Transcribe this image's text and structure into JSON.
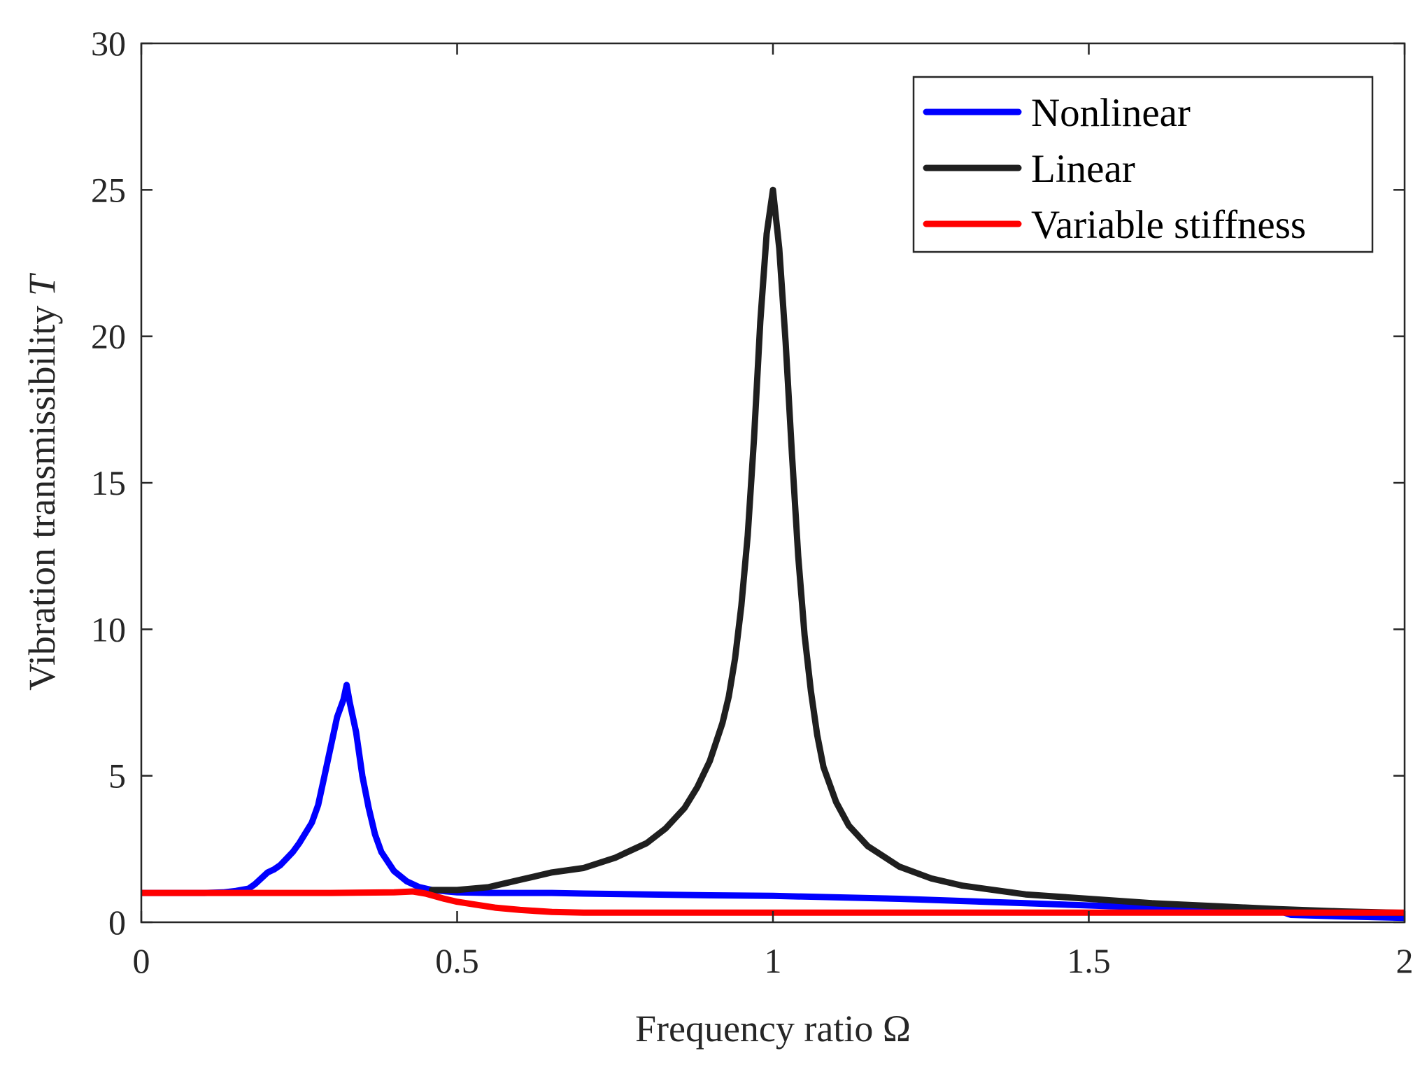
{
  "chart_data": {
    "type": "line",
    "title": "",
    "xlabel": "Frequency ratio Ω",
    "ylabel_text": "Vibration transmissibility ",
    "ylabel_var": "T",
    "xlim": [
      0,
      2
    ],
    "ylim": [
      0,
      30
    ],
    "xticks": [
      0,
      0.5,
      1,
      1.5,
      2
    ],
    "xtick_labels": [
      "0",
      "0.5",
      "1",
      "1.5",
      "2"
    ],
    "yticks": [
      0,
      5,
      10,
      15,
      20,
      25,
      30
    ],
    "ytick_labels": [
      "0",
      "5",
      "10",
      "15",
      "20",
      "25",
      "30"
    ],
    "grid": false,
    "legend_position": "top-right",
    "series": [
      {
        "name": "Nonlinear",
        "color": "#0000ff",
        "x": [
          0,
          0.05,
          0.1,
          0.13,
          0.15,
          0.17,
          0.18,
          0.2,
          0.21,
          0.22,
          0.24,
          0.25,
          0.27,
          0.28,
          0.29,
          0.3,
          0.31,
          0.32,
          0.325,
          0.33,
          0.34,
          0.35,
          0.36,
          0.37,
          0.38,
          0.4,
          0.42,
          0.44,
          0.46,
          0.5,
          0.55,
          0.6,
          0.65,
          0.7,
          0.8,
          0.9,
          1.0,
          1.2,
          1.4,
          1.6,
          1.8,
          1.82,
          1.9,
          2.0
        ],
        "y": [
          1.0,
          1.0,
          1.0,
          1.02,
          1.07,
          1.15,
          1.3,
          1.7,
          1.8,
          1.95,
          2.4,
          2.7,
          3.4,
          4.0,
          5.0,
          6.0,
          7.0,
          7.6,
          8.1,
          7.5,
          6.5,
          5.0,
          3.9,
          3.0,
          2.4,
          1.75,
          1.4,
          1.2,
          1.1,
          1.02,
          1.0,
          1.0,
          1.0,
          0.98,
          0.95,
          0.92,
          0.9,
          0.8,
          0.65,
          0.5,
          0.4,
          0.25,
          0.2,
          0.15
        ]
      },
      {
        "name": "Linear",
        "color": "#1f1f1f",
        "x": [
          0.46,
          0.5,
          0.55,
          0.6,
          0.63,
          0.65,
          0.7,
          0.75,
          0.77,
          0.8,
          0.83,
          0.86,
          0.88,
          0.9,
          0.92,
          0.93,
          0.94,
          0.95,
          0.96,
          0.97,
          0.98,
          0.99,
          1.0,
          1.01,
          1.02,
          1.03,
          1.04,
          1.05,
          1.06,
          1.07,
          1.08,
          1.1,
          1.12,
          1.15,
          1.2,
          1.25,
          1.3,
          1.4,
          1.5,
          1.6,
          1.7,
          1.8,
          1.9,
          2.0
        ],
        "y": [
          1.1,
          1.1,
          1.2,
          1.45,
          1.6,
          1.7,
          1.85,
          2.2,
          2.4,
          2.7,
          3.2,
          3.9,
          4.6,
          5.5,
          6.8,
          7.7,
          9.0,
          10.8,
          13.2,
          16.5,
          20.5,
          23.5,
          25.0,
          23.0,
          19.8,
          16.0,
          12.5,
          9.8,
          7.9,
          6.4,
          5.3,
          4.1,
          3.3,
          2.6,
          1.9,
          1.5,
          1.25,
          0.95,
          0.8,
          0.65,
          0.55,
          0.45,
          0.37,
          0.32
        ]
      },
      {
        "name": "Variable stiffness",
        "color": "#ff0000",
        "x": [
          0,
          0.1,
          0.2,
          0.3,
          0.4,
          0.43,
          0.45,
          0.48,
          0.5,
          0.53,
          0.56,
          0.6,
          0.65,
          0.7,
          0.8,
          0.9,
          1.0,
          1.2,
          1.4,
          1.6,
          1.8,
          2.0
        ],
        "y": [
          1.0,
          1.0,
          1.0,
          1.0,
          1.02,
          1.05,
          0.98,
          0.8,
          0.7,
          0.6,
          0.5,
          0.42,
          0.35,
          0.33,
          0.33,
          0.33,
          0.33,
          0.33,
          0.33,
          0.33,
          0.33,
          0.33
        ]
      }
    ]
  }
}
